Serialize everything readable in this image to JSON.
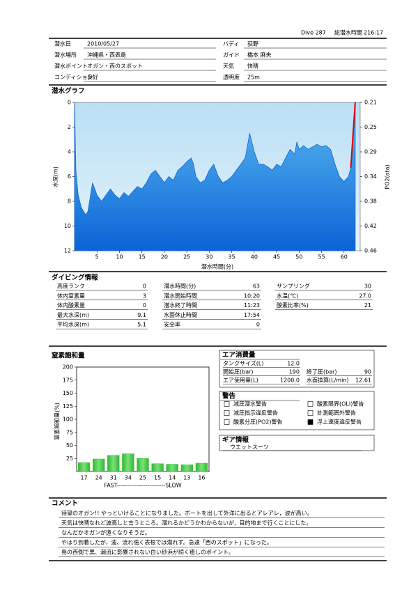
{
  "header": {
    "dive": "Dive 287",
    "total_label": "総潜水時間",
    "total": "216:17"
  },
  "log": {
    "fields": [
      {
        "label": "潜水日",
        "value": "2010/05/27"
      },
      {
        "label": "バディ",
        "value": "荻野"
      },
      {
        "label": "潜水場所",
        "value": "沖縄県・西表島"
      },
      {
        "label": "ガイド",
        "value": "橋本 麻央"
      },
      {
        "label": "潜水ポイント",
        "value": "オガン・西のスポット"
      },
      {
        "label": "天気",
        "value": "快晴"
      },
      {
        "label": "コンディション",
        "value": "良好"
      },
      {
        "label": "透明度",
        "value": "25m"
      }
    ]
  },
  "chart_data": [
    {
      "type": "area",
      "title": "潜水グラフ",
      "xlabel": "潜水時間(分)",
      "ylabel": "水深(m)",
      "y2label": "PO2(ata)",
      "x": [
        0,
        0.3,
        0.8,
        1.5,
        2.5,
        3,
        4,
        4.5,
        5,
        6,
        7,
        8,
        9,
        10,
        11,
        12,
        13,
        14,
        15,
        16,
        17,
        18,
        19,
        20,
        21,
        22,
        23,
        24,
        25,
        26,
        26.5,
        27,
        28,
        29,
        30,
        31,
        32,
        33,
        34,
        35,
        36,
        37,
        38,
        38.5,
        39,
        40,
        41,
        42,
        43,
        44,
        45,
        46,
        47,
        48,
        49,
        49.5,
        50,
        51,
        52,
        53,
        54,
        55,
        56,
        57,
        58,
        59,
        60,
        61,
        61.5,
        62.5
      ],
      "series": [
        {
          "type": "area",
          "color": "#1565c8",
          "values": [
            0,
            5.5,
            7.5,
            8.5,
            9.1,
            8.8,
            6.5,
            7.0,
            7.5,
            8.0,
            7.5,
            7.0,
            7.5,
            7.8,
            7.3,
            7.6,
            7.2,
            6.8,
            7.0,
            6.5,
            5.8,
            5.5,
            6.0,
            6.5,
            6.0,
            6.3,
            5.5,
            5.2,
            4.8,
            4.5,
            5.0,
            6.0,
            6.5,
            6.3,
            5.5,
            5.0,
            6.0,
            6.5,
            6.3,
            6.0,
            5.5,
            5.0,
            4.5,
            3.5,
            2.5,
            4.0,
            5.0,
            5.0,
            5.2,
            5.5,
            5.0,
            5.2,
            4.5,
            3.8,
            4.2,
            3.2,
            3.8,
            3.5,
            3.8,
            3.6,
            3.4,
            3.6,
            3.5,
            3.8,
            5.0,
            6.0,
            6.4,
            6.0,
            5.3,
            0
          ]
        },
        {
          "type": "line",
          "color": "#e00000",
          "values": [
            null,
            null,
            null,
            null,
            null,
            null,
            null,
            null,
            null,
            null,
            null,
            null,
            null,
            null,
            null,
            null,
            null,
            null,
            null,
            null,
            null,
            null,
            null,
            null,
            null,
            null,
            null,
            null,
            null,
            null,
            null,
            null,
            null,
            null,
            null,
            null,
            null,
            null,
            null,
            null,
            null,
            null,
            null,
            null,
            null,
            null,
            null,
            null,
            null,
            null,
            null,
            null,
            null,
            null,
            null,
            null,
            null,
            null,
            null,
            null,
            null,
            null,
            null,
            null,
            null,
            null,
            null,
            null,
            5.3,
            0
          ]
        }
      ],
      "xlim": [
        0,
        63.6
      ],
      "xticks": [
        5,
        10,
        15,
        20,
        25,
        30,
        35,
        40,
        45,
        50,
        55,
        60
      ],
      "ylim": [
        12,
        0
      ],
      "yticks": [
        0,
        2,
        4,
        6,
        8,
        10,
        12
      ],
      "y2lim": [
        0.462,
        0.21
      ],
      "y2ticks": [
        0.21,
        {
          "value": 0.252,
          "label": "0.25"
        },
        {
          "value": 0.294,
          "label": "0.29"
        },
        {
          "value": 0.336,
          "label": "0.34"
        },
        {
          "value": 0.378,
          "label": "0.38"
        },
        0.42,
        {
          "value": 0.462,
          "label": "0.46"
        }
      ]
    },
    {
      "type": "bar",
      "title": "窒素飽和量",
      "ylabel": "窒素飽和量(%)",
      "xlabel": "FAST------------------------SLOW",
      "categories": [
        "17",
        "24",
        "31",
        "34",
        "25",
        "15",
        "14",
        "13",
        "16"
      ],
      "values": [
        17,
        24,
        31,
        34,
        25,
        15,
        14,
        13,
        16
      ],
      "color": "#3ec93e",
      "ylim": [
        0,
        200
      ],
      "yticks": [
        25,
        50,
        75,
        100,
        125,
        150,
        175,
        200
      ]
    }
  ],
  "dive_info": {
    "title": "ダイビング情報",
    "columns": [
      [
        {
          "label": "高度ランク",
          "value": "0"
        },
        {
          "label": "体内窒素量",
          "value": "3"
        },
        {
          "label": "体内酸素量",
          "value": "0"
        },
        {
          "label": "最大水深(m)",
          "value": "9.1"
        },
        {
          "label": "平均水深(m)",
          "value": "5.1"
        }
      ],
      [
        {
          "label": "潜水時間(分)",
          "value": "63"
        },
        {
          "label": "潜水開始時間",
          "value": "10:20"
        },
        {
          "label": "潜水終了時間",
          "value": "11:23"
        },
        {
          "label": "水面休止時間",
          "value": "17:54"
        },
        {
          "label": "安全率",
          "value": "0"
        }
      ],
      [
        {
          "label": "サンプリング",
          "value": "30"
        },
        {
          "label": "水温(℃)",
          "value": "27.0"
        },
        {
          "label": "酸素比率(%)",
          "value": "21"
        }
      ]
    ]
  },
  "air": {
    "title": "エア消費量",
    "rows": [
      [
        {
          "label": "タンクサイズ(L)",
          "value": "12.0"
        }
      ],
      [
        {
          "label": "開始圧(bar)",
          "value": "190"
        },
        {
          "label": "終了圧(bar)",
          "value": "90"
        }
      ],
      [
        {
          "label": "エア使用量(L)",
          "value": "1200.0"
        },
        {
          "label": "水面換算(L/min)",
          "value": "12.61"
        }
      ]
    ]
  },
  "warnings": {
    "title": "警告",
    "columns": [
      [
        {
          "label": "減圧潜水警告",
          "checked": false
        },
        {
          "label": "減圧指示違反警告",
          "checked": false
        },
        {
          "label": "酸素分圧(PO2)警告",
          "checked": false
        }
      ],
      [
        {
          "label": "酸素限界(OLI)警告",
          "checked": false
        },
        {
          "label": "計測範囲外警告",
          "checked": false
        },
        {
          "label": "浮上速度違反警告",
          "checked": true
        }
      ]
    ]
  },
  "gear": {
    "title": "ギア情報",
    "items": [
      "ウエットスーツ"
    ]
  },
  "comments": {
    "title": "コメント",
    "lines": [
      "待望のオガン!! やっといけることになりました。ボートを出して外洋に出るとアレアレ，波が高い。",
      "天気は快晴なれど波高しと言うところ。潜れるかどうかわからないが，目的地まで行くことにした。",
      "なんだかオガンが遠くなりそうだ。",
      "やはり到着したが，波、流れ強く表根では潜れず。急遽「西のスポット」になった。",
      "島の西側で黒、潮流に影響されない白い砂浜が続く癒しのポイント。"
    ]
  }
}
